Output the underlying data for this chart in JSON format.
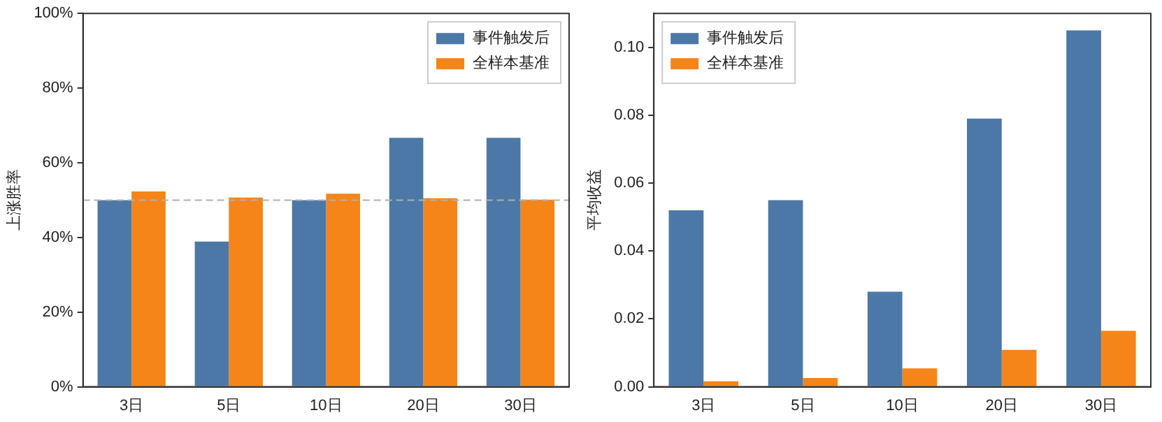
{
  "chart_data": [
    {
      "type": "bar",
      "ylabel": "上涨胜率",
      "categories": [
        "3日",
        "5日",
        "10日",
        "20日",
        "30日"
      ],
      "series": [
        {
          "name": "事件触发后",
          "color": "#4c78a8",
          "values": [
            50,
            38.9,
            50,
            66.7,
            66.7
          ]
        },
        {
          "name": "全样本基准",
          "color": "#f58518",
          "values": [
            52.3,
            50.7,
            51.7,
            50.5,
            50.1
          ]
        }
      ],
      "ylim": [
        0,
        100
      ],
      "yticks": [
        {
          "value": 0,
          "label": "0%"
        },
        {
          "value": 20,
          "label": "20%"
        },
        {
          "value": 40,
          "label": "40%"
        },
        {
          "value": 60,
          "label": "60%"
        },
        {
          "value": 80,
          "label": "80%"
        },
        {
          "value": 100,
          "label": "100%"
        }
      ],
      "ref_lines": [
        {
          "axis": "y",
          "value": 50,
          "color": "#b0b0b0",
          "line_style": "dashed"
        }
      ],
      "grid": false,
      "legend": "top right"
    },
    {
      "type": "bar",
      "ylabel": "平均收益",
      "categories": [
        "3日",
        "5日",
        "10日",
        "20日",
        "30日"
      ],
      "series": [
        {
          "name": "事件触发后",
          "color": "#4c78a8",
          "values": [
            0.052,
            0.055,
            0.028,
            0.079,
            0.105
          ]
        },
        {
          "name": "全样本基准",
          "color": "#f58518",
          "values": [
            0.0016,
            0.0026,
            0.0054,
            0.0109,
            0.0165
          ]
        }
      ],
      "ylim": [
        0,
        0.11
      ],
      "yticks": [
        {
          "value": 0,
          "label": "0.00"
        },
        {
          "value": 0.02,
          "label": "0.02"
        },
        {
          "value": 0.04,
          "label": "0.04"
        },
        {
          "value": 0.06,
          "label": "0.06"
        },
        {
          "value": 0.08,
          "label": "0.08"
        },
        {
          "value": 0.1,
          "label": "0.10"
        }
      ],
      "grid": false,
      "legend": "top left"
    }
  ]
}
